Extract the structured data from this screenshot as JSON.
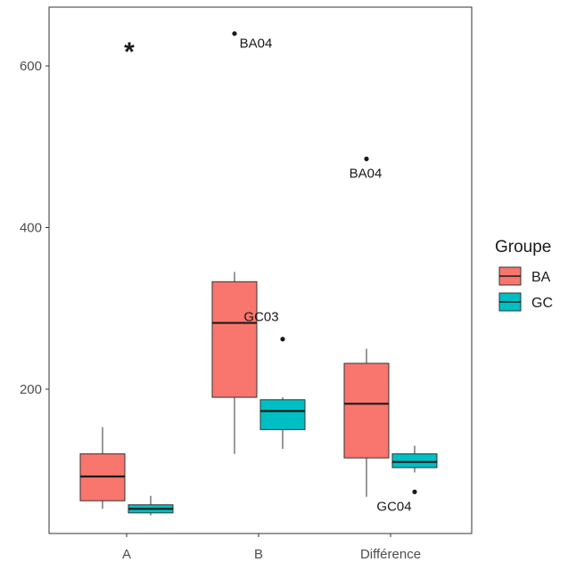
{
  "chart_data": {
    "type": "boxplot",
    "categories": [
      "A",
      "B",
      "Différence"
    ],
    "ylim": [
      0,
      660
    ],
    "yticks": [
      200,
      400,
      600
    ],
    "legend": {
      "title": "Groupe",
      "position": "right"
    },
    "grid": false,
    "series": [
      {
        "name": "BA",
        "color": "#F8766D",
        "boxes": [
          {
            "category": "A",
            "whisker_low": 52,
            "q1": 62,
            "median": 92,
            "q3": 120,
            "whisker_high": 153,
            "outliers": []
          },
          {
            "category": "B",
            "whisker_low": 120,
            "q1": 190,
            "median": 282,
            "q3": 333,
            "whisker_high": 345,
            "outliers": [
              640
            ]
          },
          {
            "category": "Différence",
            "whisker_low": 67,
            "q1": 115,
            "median": 182,
            "q3": 232,
            "whisker_high": 250,
            "outliers": [
              485
            ]
          }
        ]
      },
      {
        "name": "GC",
        "color": "#00BFC4",
        "boxes": [
          {
            "category": "A",
            "whisker_low": 44,
            "q1": 47,
            "median": 52,
            "q3": 57,
            "whisker_high": 68,
            "outliers": []
          },
          {
            "category": "B",
            "whisker_low": 126,
            "q1": 150,
            "median": 173,
            "q3": 187,
            "whisker_high": 190,
            "outliers": [
              262
            ]
          },
          {
            "category": "Différence",
            "whisker_low": 97,
            "q1": 103,
            "median": 110,
            "q3": 120,
            "whisker_high": 130,
            "outliers": [
              73
            ]
          }
        ]
      }
    ],
    "annotations": [
      {
        "text": "BA04",
        "category": "B",
        "y": 640
      },
      {
        "text": "BA04",
        "category": "Différence",
        "y": 485
      },
      {
        "text": "GC03",
        "category": "B",
        "y": 262
      },
      {
        "text": "GC04",
        "category": "Différence",
        "y": 73
      },
      {
        "text": "*",
        "category": "A",
        "y": 622
      }
    ]
  }
}
